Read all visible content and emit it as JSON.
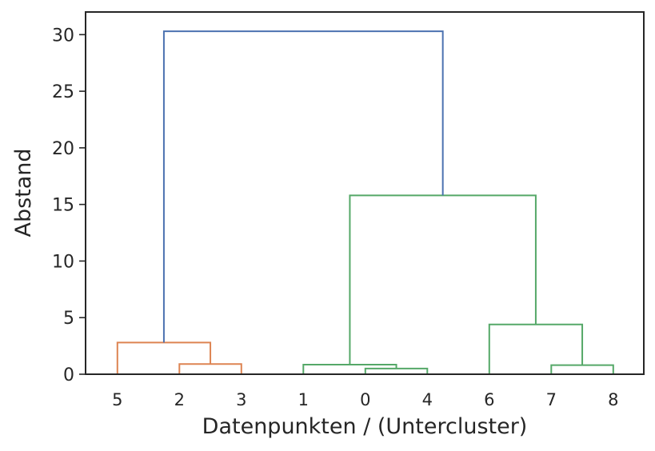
{
  "chart_data": {
    "type": "dendrogram",
    "xlabel": "Datenpunkten / (Untercluster)",
    "ylabel": "Abstand",
    "ylim": [
      0,
      32
    ],
    "yticks": [
      0,
      5,
      10,
      15,
      20,
      25,
      30
    ],
    "leaf_labels": [
      "5",
      "2",
      "3",
      "1",
      "0",
      "4",
      "6",
      "7",
      "8"
    ],
    "colors": {
      "orange": "#dd8452",
      "green": "#55a868",
      "blue": "#4c72b0",
      "axis": "#262626"
    },
    "links": [
      {
        "left": 1,
        "right": 2,
        "height": 0.9,
        "color": "orange"
      },
      {
        "left": 0,
        "right": "L0",
        "height": 2.8,
        "color": "orange"
      },
      {
        "left": 4,
        "right": 5,
        "height": 0.5,
        "color": "green"
      },
      {
        "left": 3,
        "right": "L2",
        "height": 0.85,
        "color": "green"
      },
      {
        "left": 7,
        "right": 8,
        "height": 0.8,
        "color": "green"
      },
      {
        "left": 6,
        "right": "L4",
        "height": 4.4,
        "color": "green"
      },
      {
        "left": "L3",
        "right": "L5",
        "height": 15.8,
        "color": "green"
      },
      {
        "left": "L1",
        "right": "L6",
        "height": 30.3,
        "color": "blue"
      }
    ]
  }
}
